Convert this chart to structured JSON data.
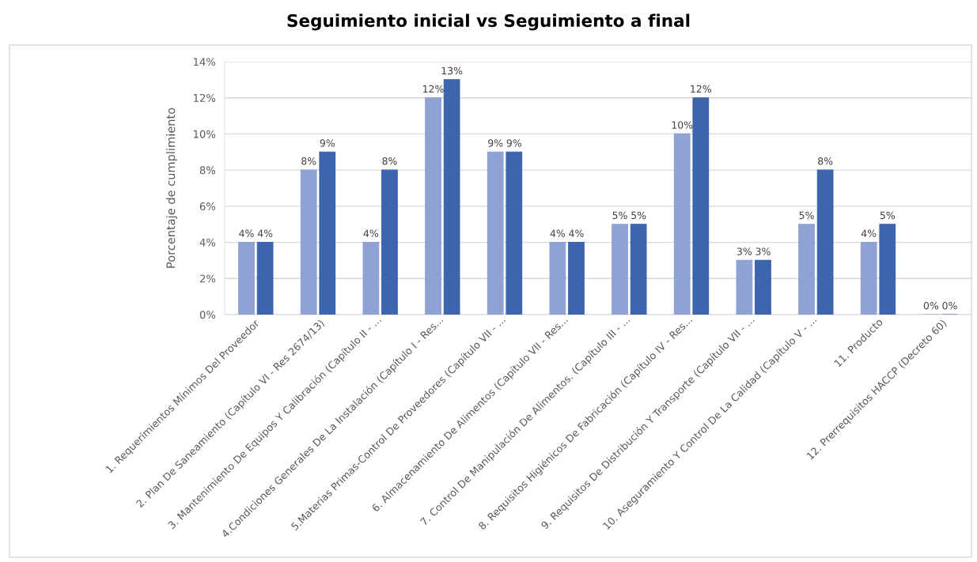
{
  "chart_data": {
    "type": "bar",
    "title": "Seguimiento inicial vs Seguimiento a final",
    "ylabel": "Porcentaje de cumplimiento",
    "categories": [
      "1. Requerimientos Mínimos Del Proveedor",
      "2. Plan De Saneamiento (Capítulo VI - Res 2674/13)",
      "3. Mantenimiento De Equipos Y Calibración (Capítulo II - ...",
      "4.Condiciones Generales De La Instalación (Capítulo I - Res...",
      "5.Materias Primas-Control De Proveedores (Capítulo VII - ...",
      "6. Almacenamiento De Alimentos (Capítulo VII - Res...",
      "7. Control De Manipulación De Alimentos. (Capítulo III - ...",
      "8. Requisitos Higiénicos De Fabricación (Capítulo IV - Res...",
      "9. Requisitos De Distribución Y Transporte (Capítulo VII - ...",
      "10. Aseguramiento Y Control De La Calidad (Capítulo V - ...",
      "11. Producto",
      "12. Prerrequisitos HACCP (Decreto 60)"
    ],
    "series": [
      {
        "color": "#8fa2d4",
        "values": [
          4,
          8,
          4,
          12,
          9,
          4,
          5,
          10,
          3,
          5,
          4,
          0
        ],
        "value_labels": [
          "4%",
          "8%",
          "4%",
          "12%",
          "9%",
          "4%",
          "5%",
          "10%",
          "3%",
          "5%",
          "4%",
          "0%"
        ]
      },
      {
        "color": "#3d64ad",
        "values": [
          4,
          9,
          8,
          13,
          9,
          4,
          5,
          12,
          3,
          8,
          5,
          0
        ],
        "value_labels": [
          "4%",
          "9%",
          "8%",
          "13%",
          "9%",
          "4%",
          "5%",
          "12%",
          "3%",
          "8%",
          "5%",
          "0%"
        ]
      }
    ],
    "ylim": [
      0,
      14
    ],
    "yticks": [
      {
        "value": 0,
        "label": "0%"
      },
      {
        "value": 2,
        "label": "2%"
      },
      {
        "value": 4,
        "label": "4%"
      },
      {
        "value": 6,
        "label": "6%"
      },
      {
        "value": 8,
        "label": "8%"
      },
      {
        "value": 10,
        "label": "10%"
      },
      {
        "value": 12,
        "label": "12%"
      },
      {
        "value": 14,
        "label": "14%"
      }
    ],
    "grid": "y"
  }
}
